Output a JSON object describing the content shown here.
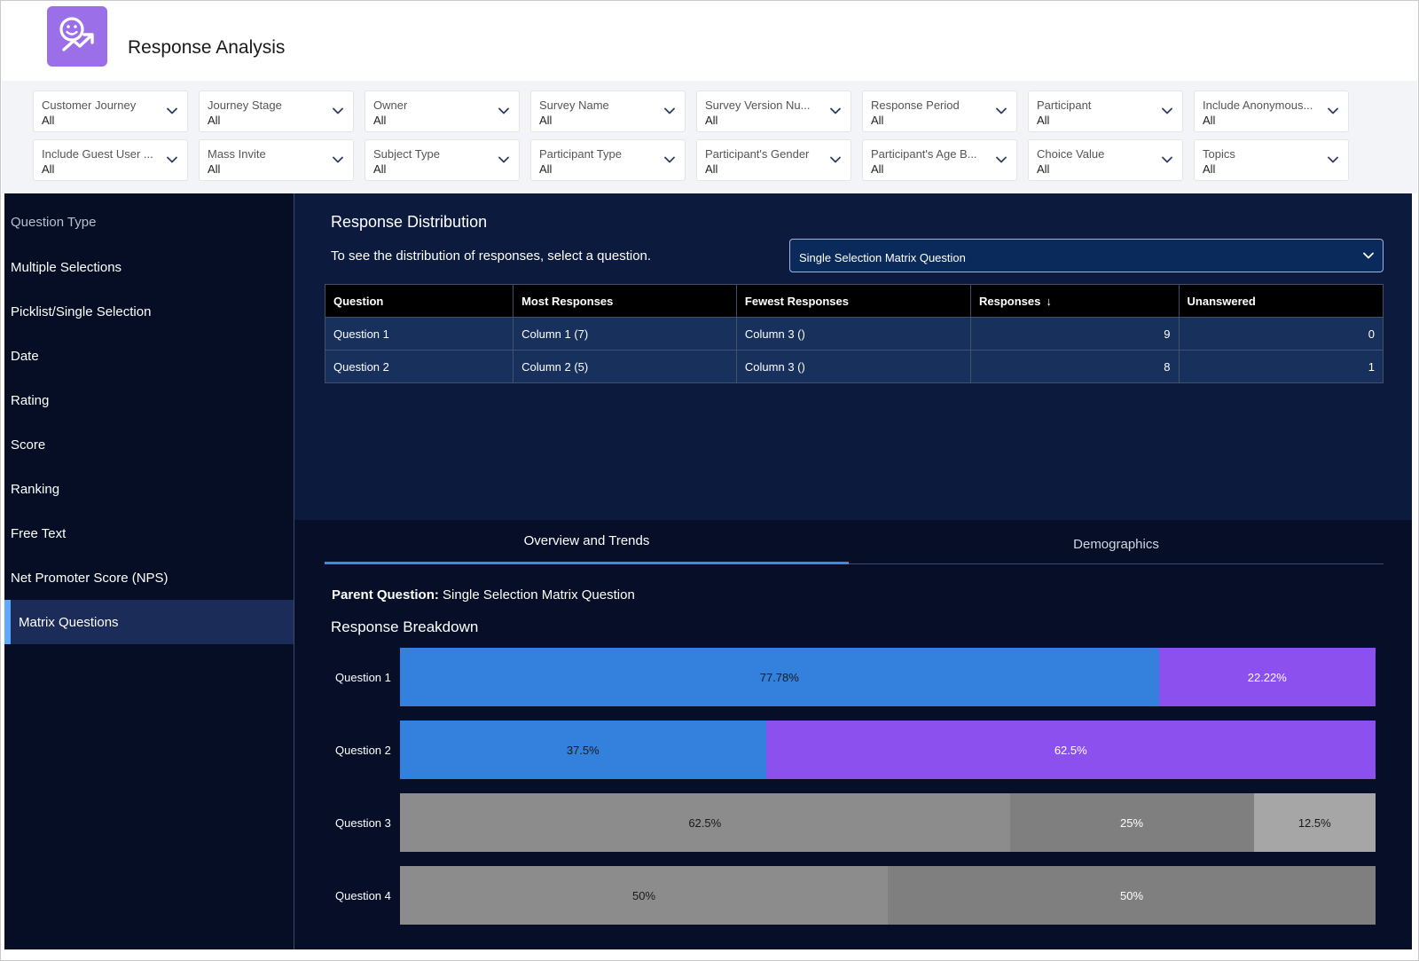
{
  "app": {
    "title": "Response Analysis",
    "icon": "smile-trend-icon",
    "icon_color": "#9b6fe8"
  },
  "filters": [
    {
      "label": "Customer Journey",
      "value": "All"
    },
    {
      "label": "Journey Stage",
      "value": "All"
    },
    {
      "label": "Owner",
      "value": "All"
    },
    {
      "label": "Survey Name",
      "value": "All"
    },
    {
      "label": "Survey Version Nu...",
      "value": "All"
    },
    {
      "label": "Response Period",
      "value": "All"
    },
    {
      "label": "Participant",
      "value": "All"
    },
    {
      "label": "Include Anonymous...",
      "value": "All"
    },
    {
      "label": "Include Guest User ...",
      "value": "All"
    },
    {
      "label": "Mass Invite",
      "value": "All"
    },
    {
      "label": "Subject Type",
      "value": "All"
    },
    {
      "label": "Participant Type",
      "value": "All"
    },
    {
      "label": "Participant's Gender",
      "value": "All"
    },
    {
      "label": "Participant's Age B...",
      "value": "All"
    },
    {
      "label": "Choice Value",
      "value": "All"
    },
    {
      "label": "Topics",
      "value": "All"
    }
  ],
  "sidebar": {
    "title": "Question Type",
    "items": [
      {
        "label": "Multiple Selections",
        "active": false
      },
      {
        "label": "Picklist/Single Selection",
        "active": false
      },
      {
        "label": "Date",
        "active": false
      },
      {
        "label": "Rating",
        "active": false
      },
      {
        "label": "Score",
        "active": false
      },
      {
        "label": "Ranking",
        "active": false
      },
      {
        "label": "Free Text",
        "active": false
      },
      {
        "label": "Net Promoter Score (NPS)",
        "active": false
      },
      {
        "label": "Matrix Questions",
        "active": true
      }
    ]
  },
  "distribution": {
    "title": "Response Distribution",
    "hint": "To see the distribution of responses, select a question.",
    "selected_question": "Single Selection Matrix Question",
    "columns": [
      "Question",
      "Most Responses",
      "Fewest Responses",
      "Responses",
      "Unanswered"
    ],
    "sort_icon": "arrow-down-icon",
    "rows": [
      [
        "Question 1",
        "Column 1 (7)",
        "Column 3 ()",
        "9",
        "0"
      ],
      [
        "Question 2",
        "Column 2 (5)",
        "Column 3 ()",
        "8",
        "1"
      ]
    ]
  },
  "tabs": [
    {
      "label": "Overview and Trends",
      "active": true
    },
    {
      "label": "Demographics",
      "active": false
    }
  ],
  "overview": {
    "parent_label": "Parent Question:",
    "parent_value": "Single Selection Matrix Question",
    "breakdown_title": "Response Breakdown"
  },
  "chart_data": {
    "type": "bar",
    "stacked": true,
    "orientation": "horizontal",
    "categories": [
      "Question 1",
      "Question 2",
      "Question 3",
      "Question 4"
    ],
    "rows": [
      {
        "label": "Question 1",
        "segments": [
          {
            "value": 77.78,
            "text": "77.78%",
            "color": "#3480dd",
            "text_color": "#1a1a1a"
          },
          {
            "value": 22.22,
            "text": "22.22%",
            "color": "#8c50ef",
            "text_color": "#ffffff"
          }
        ]
      },
      {
        "label": "Question 2",
        "segments": [
          {
            "value": 37.5,
            "text": "37.5%",
            "color": "#3480dd",
            "text_color": "#1a1a1a"
          },
          {
            "value": 62.5,
            "text": "62.5%",
            "color": "#8c50ef",
            "text_color": "#ffffff"
          }
        ]
      },
      {
        "label": "Question 3",
        "segments": [
          {
            "value": 62.5,
            "text": "62.5%",
            "color": "#8c8c8c",
            "text_color": "#1a1a1a"
          },
          {
            "value": 25,
            "text": "25%",
            "color": "#7f7f7f",
            "text_color": "#ffffff"
          },
          {
            "value": 12.5,
            "text": "12.5%",
            "color": "#a6a6a6",
            "text_color": "#1a1a1a"
          }
        ]
      },
      {
        "label": "Question 4",
        "segments": [
          {
            "value": 50,
            "text": "50%",
            "color": "#8c8c8c",
            "text_color": "#1a1a1a"
          },
          {
            "value": 50,
            "text": "50%",
            "color": "#7f7f7f",
            "text_color": "#ffffff"
          }
        ]
      }
    ]
  }
}
